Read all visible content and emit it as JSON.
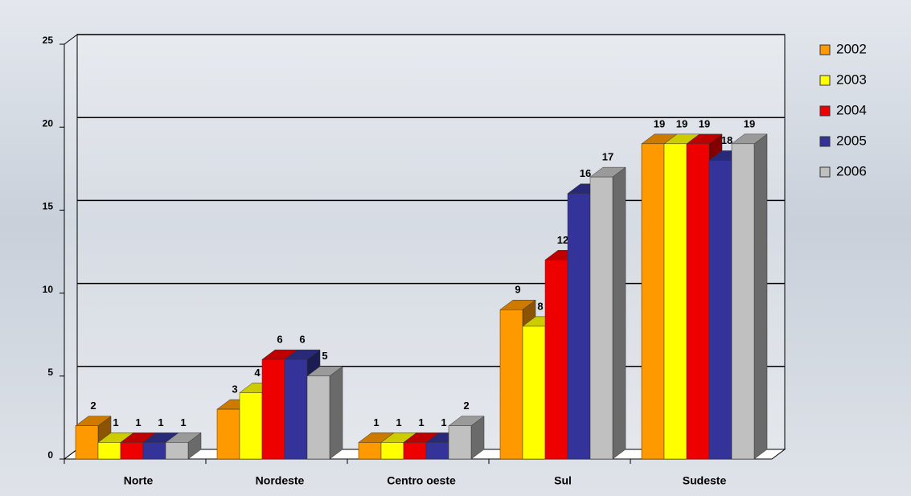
{
  "chart_data": {
    "type": "bar3d",
    "categories": [
      "Norte",
      "Nordeste",
      "Centro oeste",
      "Sul",
      "Sudeste"
    ],
    "series": [
      {
        "name": "2002",
        "color": "#ff9900",
        "values": [
          2,
          3,
          1,
          9,
          19
        ]
      },
      {
        "name": "2003",
        "color": "#ffff00",
        "values": [
          1,
          4,
          1,
          8,
          19
        ]
      },
      {
        "name": "2004",
        "color": "#ee0000",
        "values": [
          1,
          6,
          1,
          12,
          19
        ]
      },
      {
        "name": "2005",
        "color": "#333399",
        "values": [
          1,
          6,
          1,
          16,
          18
        ]
      },
      {
        "name": "2006",
        "color": "#c0c0c0",
        "values": [
          1,
          5,
          2,
          17,
          19
        ]
      }
    ],
    "ylim": [
      0,
      25
    ],
    "yticks": [
      0,
      5,
      10,
      15,
      20,
      25
    ],
    "grid": true,
    "legend": "right"
  }
}
